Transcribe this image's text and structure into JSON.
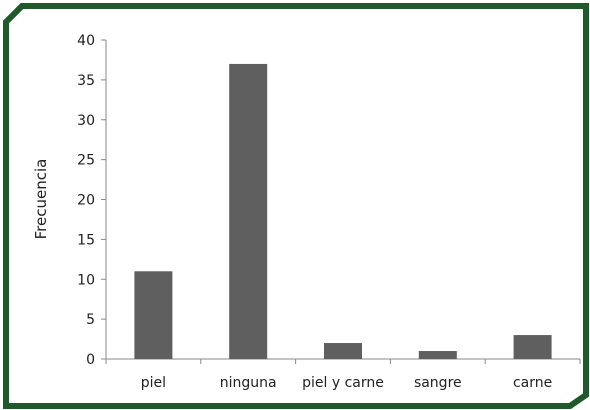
{
  "chart_data": {
    "type": "bar",
    "title": "",
    "xlabel": "",
    "ylabel": "Frecuencia",
    "categories": [
      "piel",
      "ninguna",
      "piel y carne",
      "sangre",
      "carne"
    ],
    "values": [
      11,
      37,
      2,
      1,
      3
    ],
    "ylim": [
      0,
      40
    ],
    "yticks": [
      0,
      5,
      10,
      15,
      20,
      25,
      30,
      35,
      40
    ],
    "grid": false,
    "legend": "none",
    "colors": {
      "bar": "#5f5f5f",
      "frame": "#1f5a2a",
      "axis": "#888888",
      "text": "#222222"
    }
  }
}
